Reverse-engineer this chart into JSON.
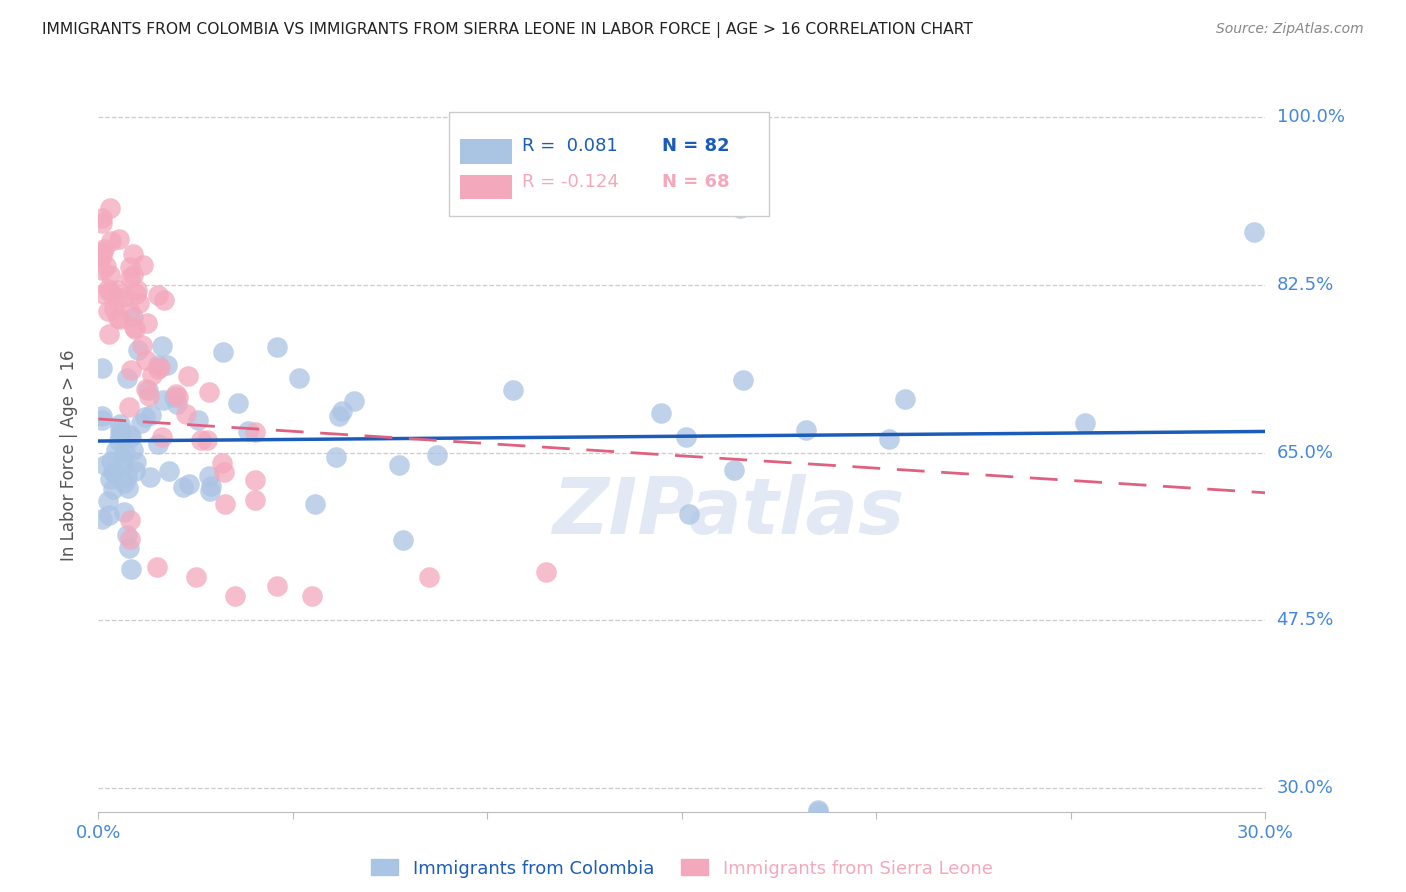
{
  "title": "IMMIGRANTS FROM COLOMBIA VS IMMIGRANTS FROM SIERRA LEONE IN LABOR FORCE | AGE > 16 CORRELATION CHART",
  "source": "Source: ZipAtlas.com",
  "ylabel": "In Labor Force | Age > 16",
  "xlim": [
    0.0,
    0.3
  ],
  "ylim": [
    0.275,
    1.02
  ],
  "yticks": [
    1.0,
    0.825,
    0.65,
    0.475,
    0.3
  ],
  "ytick_labels": [
    "100.0%",
    "82.5%",
    "65.0%",
    "47.5%",
    "30.0%"
  ],
  "colombia_R": 0.081,
  "colombia_N": 82,
  "sierraleone_R": -0.124,
  "sierraleone_N": 68,
  "colombia_color": "#aac4e4",
  "sierraleone_color": "#f4a8bc",
  "colombia_line_color": "#1a5cb8",
  "sierraleone_line_color": "#e06080",
  "background_color": "#ffffff",
  "grid_color": "#cccccc",
  "title_color": "#222222",
  "axis_label_color": "#555555",
  "tick_color": "#4488dd",
  "watermark": "ZIPatlas",
  "colombia_trend_x": [
    0.0,
    0.3
  ],
  "colombia_trend_y": [
    0.662,
    0.672
  ],
  "sierraleone_trend_x": [
    0.0,
    0.3
  ],
  "sierraleone_trend_y": [
    0.685,
    0.608
  ]
}
